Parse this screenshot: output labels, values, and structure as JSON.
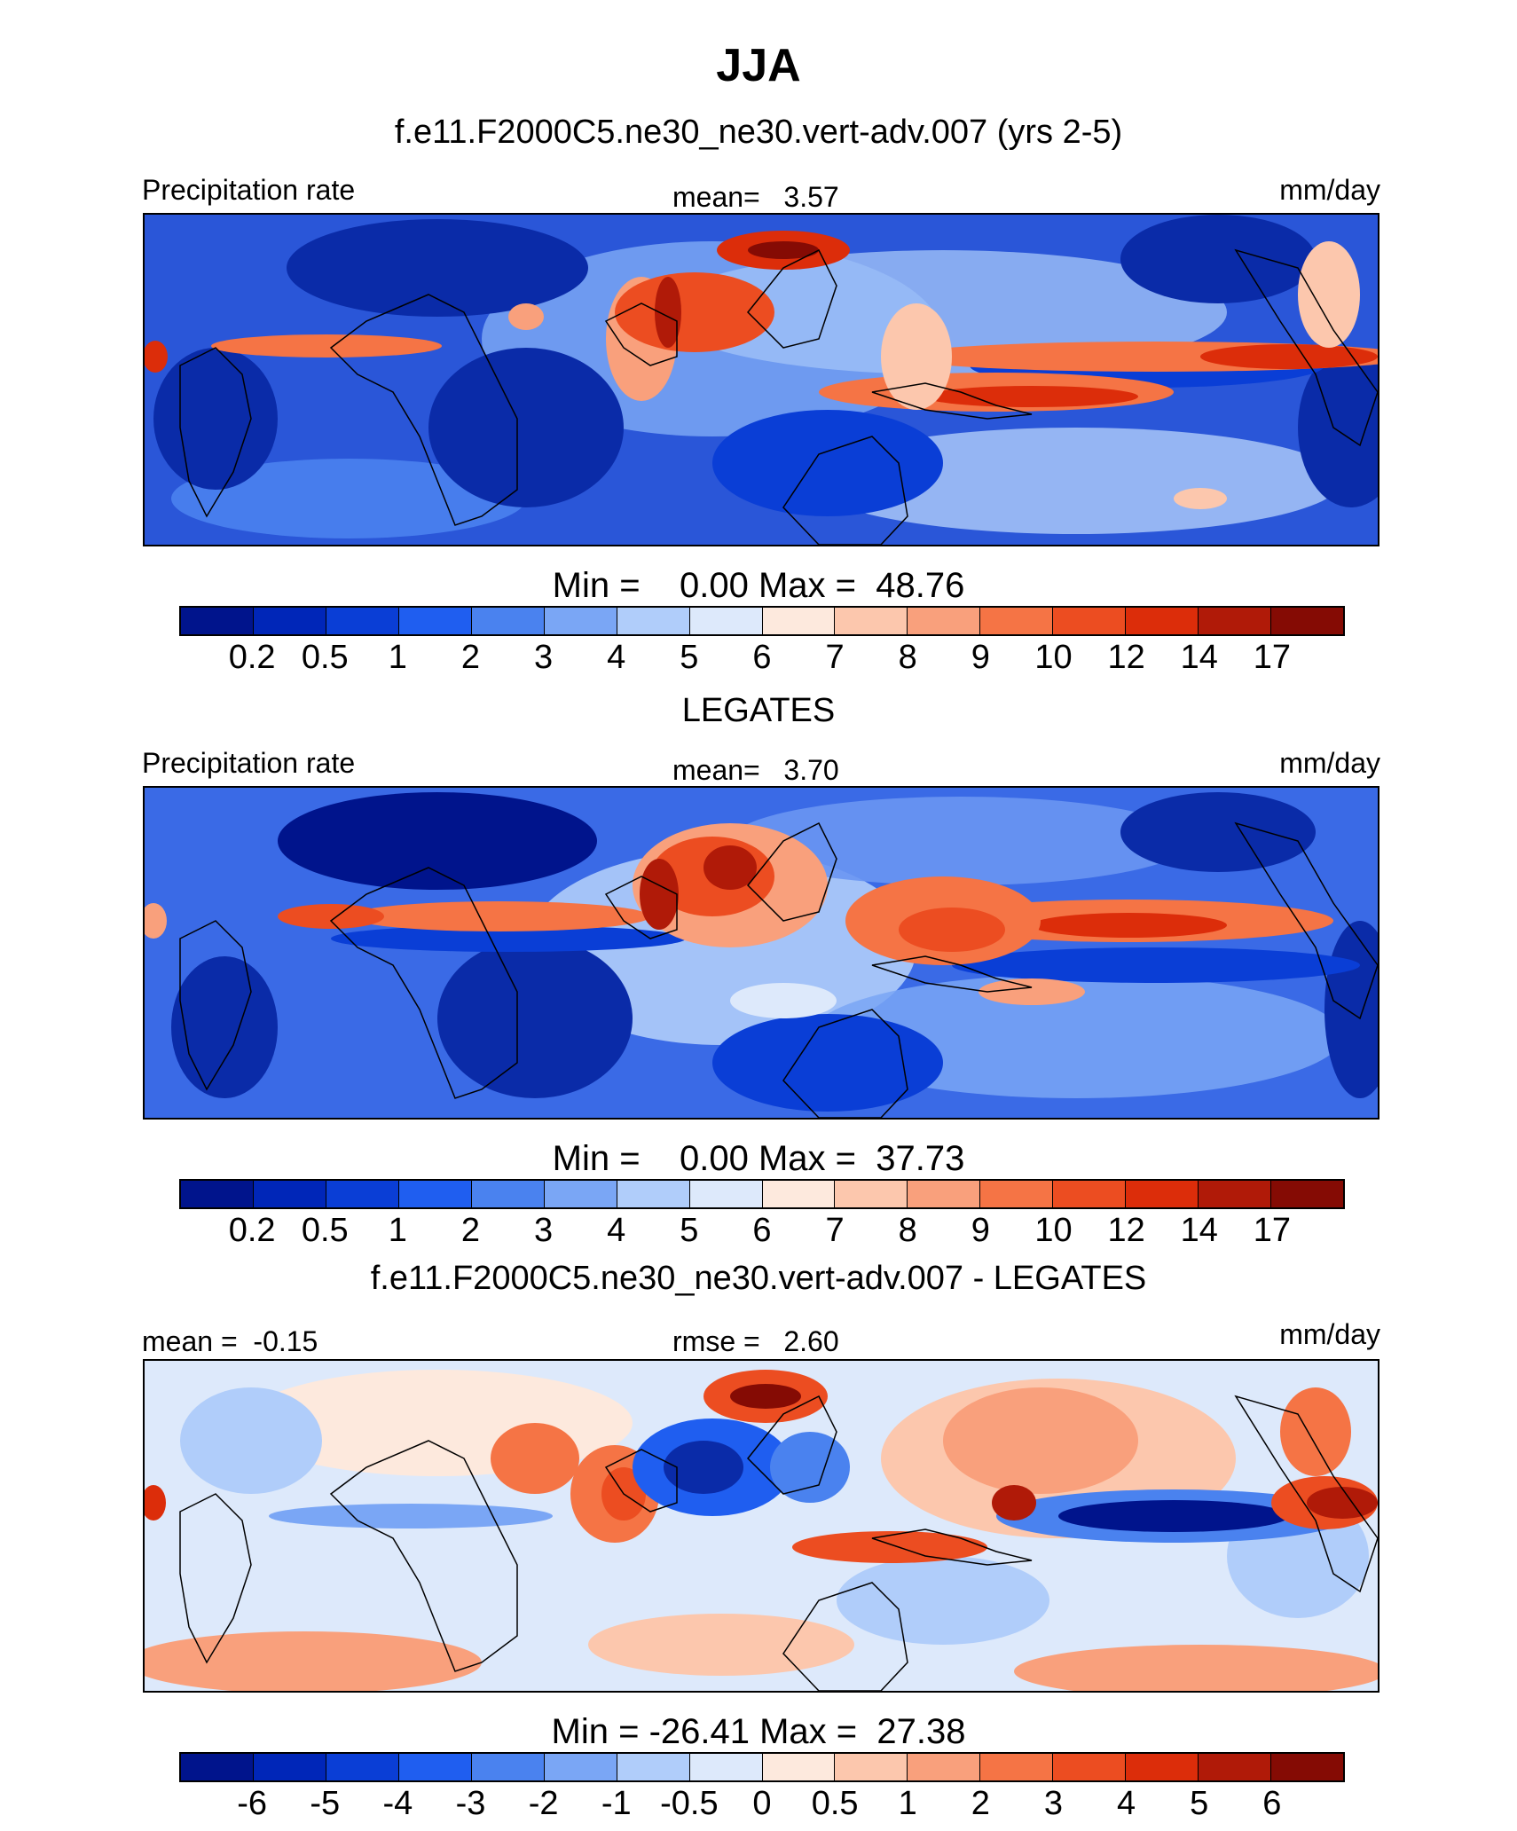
{
  "figure": {
    "title": "JJA"
  },
  "chart_data": [
    {
      "type": "heatmap",
      "title": "f.e11.F2000C5.ne30_ne30.vert-adv.007 (yrs 2-5)",
      "left_label": "Precipitation rate",
      "center_label": "mean=   3.57",
      "units": "mm/day",
      "minmax": "Min =    0.00 Max =  48.76",
      "colorbar": {
        "ticks": [
          "0.2",
          "0.5",
          "1",
          "2",
          "3",
          "4",
          "5",
          "6",
          "7",
          "8",
          "9",
          "10",
          "12",
          "14",
          "17"
        ],
        "colors": [
          "#00148c",
          "#0026b8",
          "#0a3ed6",
          "#1f5ef0",
          "#4a82ef",
          "#7aa6f5",
          "#b0cdfa",
          "#dde9fb",
          "#fde9dd",
          "#fcc7ad",
          "#f9a07c",
          "#f57445",
          "#ec4d21",
          "#dc2d0a",
          "#b01a08",
          "#850b04"
        ]
      },
      "ylim": [
        -45,
        45
      ],
      "xlim": [
        -60,
        300
      ]
    },
    {
      "type": "heatmap",
      "title": "LEGATES",
      "left_label": "Precipitation rate",
      "center_label": "mean=   3.70",
      "units": "mm/day",
      "minmax": "Min =    0.00 Max =  37.73",
      "colorbar": {
        "ticks": [
          "0.2",
          "0.5",
          "1",
          "2",
          "3",
          "4",
          "5",
          "6",
          "7",
          "8",
          "9",
          "10",
          "12",
          "14",
          "17"
        ],
        "colors": [
          "#00148c",
          "#0026b8",
          "#0a3ed6",
          "#1f5ef0",
          "#4a82ef",
          "#7aa6f5",
          "#b0cdfa",
          "#dde9fb",
          "#fde9dd",
          "#fcc7ad",
          "#f9a07c",
          "#f57445",
          "#ec4d21",
          "#dc2d0a",
          "#b01a08",
          "#850b04"
        ]
      },
      "ylim": [
        -45,
        45
      ],
      "xlim": [
        -60,
        300
      ]
    },
    {
      "type": "heatmap",
      "title": "f.e11.F2000C5.ne30_ne30.vert-adv.007 - LEGATES",
      "left_label": "mean =  -0.15",
      "center_label": "rmse =   2.60",
      "units": "mm/day",
      "minmax": "Min = -26.41 Max =  27.38",
      "colorbar": {
        "ticks": [
          "-6",
          "-5",
          "-4",
          "-3",
          "-2",
          "-1",
          "-0.5",
          "0",
          "0.5",
          "1",
          "2",
          "3",
          "4",
          "5",
          "6"
        ],
        "colors": [
          "#00148c",
          "#0026b8",
          "#0a3ed6",
          "#1f5ef0",
          "#4a82ef",
          "#7aa6f5",
          "#b0cdfa",
          "#dde9fb",
          "#fde9dd",
          "#fcc7ad",
          "#f9a07c",
          "#f57445",
          "#ec4d21",
          "#dc2d0a",
          "#b01a08",
          "#850b04"
        ]
      },
      "ylim": [
        -45,
        45
      ],
      "xlim": [
        -60,
        300
      ]
    }
  ]
}
